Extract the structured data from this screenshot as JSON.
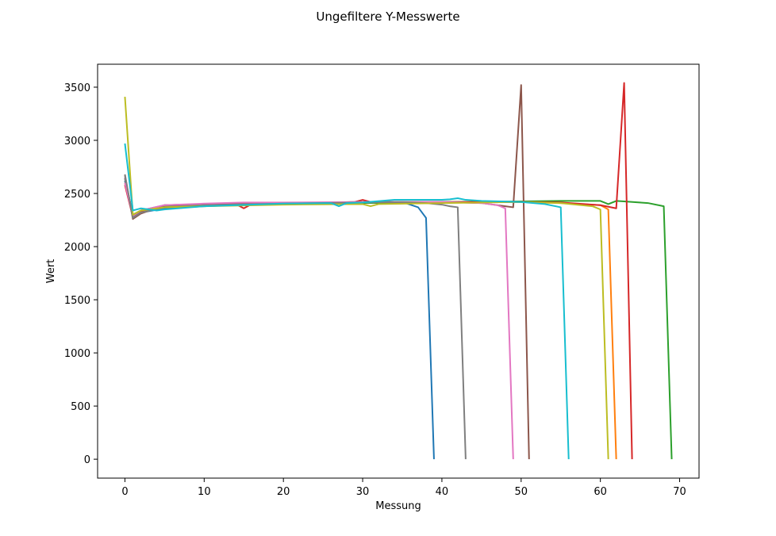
{
  "chart_data": {
    "type": "line",
    "title": "Ungefiltere Y-Messwerte",
    "xlabel": "Messung",
    "ylabel": "Wert",
    "xlim": [
      -3.45,
      72.45
    ],
    "ylim": [
      -178,
      3716
    ],
    "xticks": [
      0,
      10,
      20,
      30,
      40,
      50,
      60,
      70
    ],
    "yticks": [
      0,
      500,
      1000,
      1500,
      2000,
      2500,
      3000,
      3500
    ],
    "grid": false,
    "legend": "none",
    "series": [
      {
        "color": "#1f77b4",
        "points": [
          [
            0,
            2620
          ],
          [
            1,
            2280
          ],
          [
            2,
            2320
          ],
          [
            5,
            2360
          ],
          [
            10,
            2380
          ],
          [
            15,
            2395
          ],
          [
            20,
            2400
          ],
          [
            25,
            2405
          ],
          [
            30,
            2410
          ],
          [
            33,
            2420
          ],
          [
            35,
            2420
          ],
          [
            37,
            2370
          ],
          [
            38,
            2270
          ],
          [
            39,
            0
          ]
        ]
      },
      {
        "color": "#ff7f0e",
        "points": [
          [
            0,
            2600
          ],
          [
            1,
            2290
          ],
          [
            2,
            2330
          ],
          [
            5,
            2370
          ],
          [
            10,
            2390
          ],
          [
            20,
            2400
          ],
          [
            30,
            2410
          ],
          [
            40,
            2420
          ],
          [
            50,
            2420
          ],
          [
            55,
            2410
          ],
          [
            60,
            2390
          ],
          [
            61,
            2350
          ],
          [
            62,
            0
          ]
        ]
      },
      {
        "color": "#2ca02c",
        "points": [
          [
            0,
            2640
          ],
          [
            1,
            2300
          ],
          [
            2,
            2340
          ],
          [
            5,
            2380
          ],
          [
            10,
            2390
          ],
          [
            20,
            2405
          ],
          [
            30,
            2410
          ],
          [
            40,
            2420
          ],
          [
            50,
            2425
          ],
          [
            55,
            2430
          ],
          [
            60,
            2430
          ],
          [
            61,
            2400
          ],
          [
            62,
            2430
          ],
          [
            63,
            2425
          ],
          [
            66,
            2410
          ],
          [
            68,
            2380
          ],
          [
            69,
            0
          ]
        ]
      },
      {
        "color": "#d62728",
        "points": [
          [
            0,
            2580
          ],
          [
            1,
            2280
          ],
          [
            2,
            2330
          ],
          [
            5,
            2370
          ],
          [
            10,
            2390
          ],
          [
            14,
            2400
          ],
          [
            15,
            2360
          ],
          [
            16,
            2400
          ],
          [
            20,
            2405
          ],
          [
            29,
            2420
          ],
          [
            30,
            2440
          ],
          [
            31,
            2420
          ],
          [
            40,
            2420
          ],
          [
            50,
            2420
          ],
          [
            55,
            2415
          ],
          [
            60,
            2390
          ],
          [
            62,
            2360
          ],
          [
            63,
            3540
          ],
          [
            64,
            0
          ]
        ]
      },
      {
        "color": "#9467bd",
        "points": [
          [
            0,
            2650
          ],
          [
            1,
            2290
          ],
          [
            2,
            2340
          ],
          [
            5,
            2390
          ],
          [
            10,
            2400
          ],
          [
            20,
            2410
          ],
          [
            30,
            2420
          ],
          [
            35,
            2420
          ],
          [
            38,
            2410
          ]
        ]
      },
      {
        "color": "#8c564b",
        "points": [
          [
            0,
            2670
          ],
          [
            1,
            2260
          ],
          [
            2,
            2310
          ],
          [
            5,
            2390
          ],
          [
            10,
            2400
          ],
          [
            20,
            2410
          ],
          [
            30,
            2420
          ],
          [
            40,
            2420
          ],
          [
            45,
            2410
          ],
          [
            48,
            2380
          ],
          [
            49,
            2370
          ],
          [
            50,
            3520
          ],
          [
            51,
            0
          ]
        ]
      },
      {
        "color": "#e377c2",
        "points": [
          [
            0,
            2600
          ],
          [
            1,
            2290
          ],
          [
            2,
            2340
          ],
          [
            5,
            2390
          ],
          [
            10,
            2405
          ],
          [
            15,
            2415
          ],
          [
            20,
            2415
          ],
          [
            30,
            2420
          ],
          [
            40,
            2420
          ],
          [
            45,
            2410
          ],
          [
            47,
            2390
          ],
          [
            48,
            2360
          ],
          [
            49,
            0
          ]
        ]
      },
      {
        "color": "#7f7f7f",
        "points": [
          [
            0,
            2680
          ],
          [
            1,
            2270
          ],
          [
            2,
            2320
          ],
          [
            5,
            2370
          ],
          [
            10,
            2390
          ],
          [
            20,
            2405
          ],
          [
            30,
            2415
          ],
          [
            35,
            2420
          ],
          [
            38,
            2410
          ],
          [
            40,
            2395
          ],
          [
            41,
            2380
          ],
          [
            42,
            2370
          ],
          [
            43,
            0
          ]
        ]
      },
      {
        "color": "#bcbd22",
        "points": [
          [
            0,
            3410
          ],
          [
            1,
            2300
          ],
          [
            2,
            2340
          ],
          [
            5,
            2370
          ],
          [
            10,
            2380
          ],
          [
            20,
            2395
          ],
          [
            30,
            2400
          ],
          [
            31,
            2380
          ],
          [
            32,
            2400
          ],
          [
            40,
            2410
          ],
          [
            50,
            2420
          ],
          [
            55,
            2410
          ],
          [
            59,
            2380
          ],
          [
            60,
            2350
          ],
          [
            61,
            0
          ]
        ]
      },
      {
        "color": "#17becf",
        "points": [
          [
            0,
            2970
          ],
          [
            1,
            2340
          ],
          [
            2,
            2360
          ],
          [
            3,
            2350
          ],
          [
            4,
            2340
          ],
          [
            5,
            2350
          ],
          [
            10,
            2380
          ],
          [
            20,
            2405
          ],
          [
            26,
            2410
          ],
          [
            27,
            2380
          ],
          [
            28,
            2410
          ],
          [
            30,
            2415
          ],
          [
            34,
            2440
          ],
          [
            40,
            2440
          ],
          [
            41,
            2445
          ],
          [
            42,
            2455
          ],
          [
            43,
            2440
          ],
          [
            45,
            2430
          ],
          [
            50,
            2420
          ],
          [
            53,
            2400
          ],
          [
            55,
            2370
          ],
          [
            56,
            0
          ]
        ]
      }
    ]
  }
}
